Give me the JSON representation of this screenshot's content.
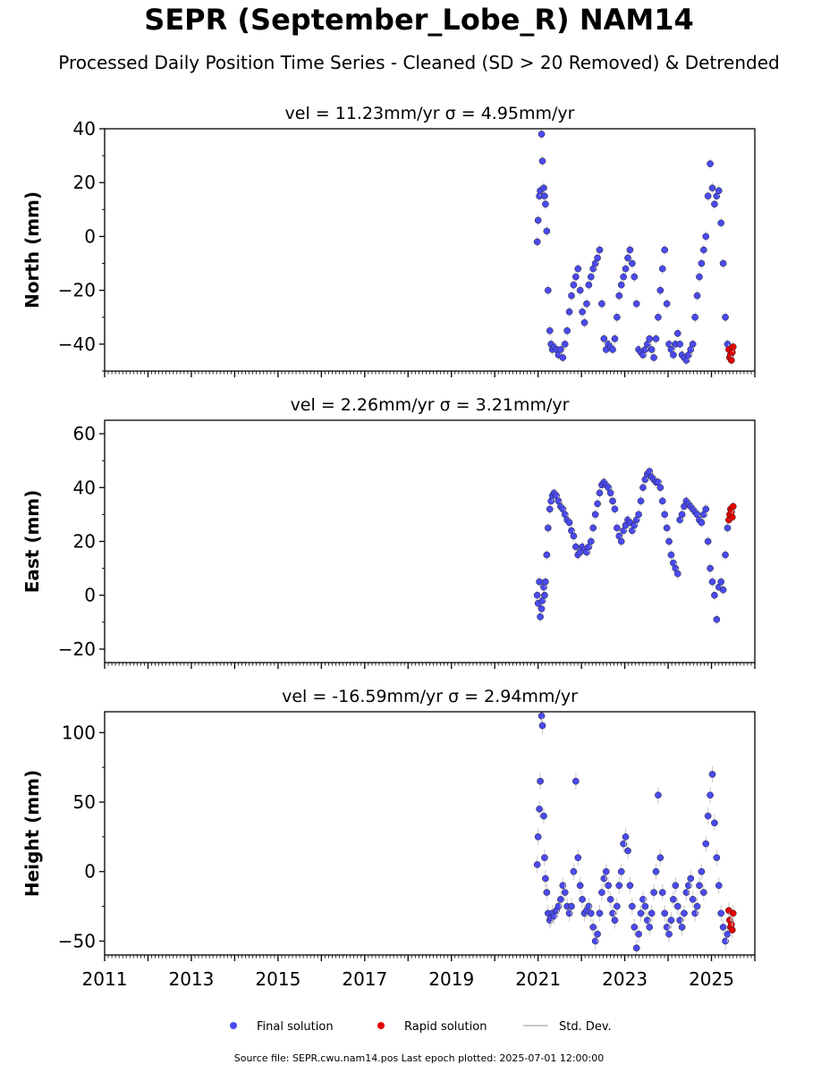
{
  "title": "SEPR (September_Lobe_R) NAM14",
  "subtitle": "Processed Daily Position Time Series - Cleaned (SD > 20 Removed) & Detrended",
  "footer": "Source file: SEPR.cwu.nam14.pos  Last epoch plotted: 2025-07-01 12:00:00",
  "colors": {
    "final": "#4a4af0",
    "rapid": "#e60000",
    "std": "#c8c8c8"
  },
  "legend": [
    {
      "key": "final",
      "label": "Final solution"
    },
    {
      "key": "rapid",
      "label": "Rapid solution"
    },
    {
      "key": "std",
      "label": "Std. Dev."
    }
  ],
  "chart_data": [
    {
      "type": "scatter",
      "panel": "north",
      "title": "vel = 11.23mm/yr   σ = 4.95mm/yr",
      "ylabel": "North (mm)",
      "xlim": [
        2011,
        2026
      ],
      "ylim": [
        -50,
        40
      ],
      "yticks": [
        -40,
        -20,
        0,
        20,
        40
      ],
      "xticks": [
        2011,
        2013,
        2015,
        2017,
        2019,
        2021,
        2023,
        2025
      ],
      "show_xticklabels": false,
      "series": [
        {
          "name": "Final solution",
          "x": [
            2020.98,
            2021.0,
            2021.03,
            2021.05,
            2021.08,
            2021.1,
            2021.13,
            2021.15,
            2021.17,
            2021.2,
            2021.23,
            2021.27,
            2021.3,
            2021.33,
            2021.37,
            2021.42,
            2021.47,
            2021.52,
            2021.57,
            2021.62,
            2021.67,
            2021.72,
            2021.77,
            2021.82,
            2021.87,
            2021.92,
            2021.97,
            2022.02,
            2022.07,
            2022.12,
            2022.17,
            2022.22,
            2022.27,
            2022.32,
            2022.37,
            2022.42,
            2022.47,
            2022.52,
            2022.57,
            2022.62,
            2022.67,
            2022.72,
            2022.77,
            2022.82,
            2022.87,
            2022.92,
            2022.97,
            2023.02,
            2023.07,
            2023.12,
            2023.17,
            2023.22,
            2023.27,
            2023.32,
            2023.37,
            2023.42,
            2023.47,
            2023.52,
            2023.57,
            2023.62,
            2023.67,
            2023.72,
            2023.77,
            2023.82,
            2023.87,
            2023.92,
            2023.97,
            2024.02,
            2024.07,
            2024.12,
            2024.17,
            2024.22,
            2024.27,
            2024.32,
            2024.37,
            2024.42,
            2024.47,
            2024.52,
            2024.57,
            2024.62,
            2024.67,
            2024.72,
            2024.77,
            2024.82,
            2024.87,
            2024.92,
            2024.97,
            2025.02,
            2025.07,
            2025.12,
            2025.17,
            2025.22,
            2025.27,
            2025.32,
            2025.37
          ],
          "y": [
            -2,
            6,
            15,
            17,
            38,
            28,
            18,
            15,
            12,
            2,
            -20,
            -35,
            -40,
            -42,
            -41,
            -42,
            -44,
            -42,
            -45,
            -40,
            -35,
            -28,
            -22,
            -18,
            -15,
            -12,
            -20,
            -28,
            -32,
            -25,
            -18,
            -15,
            -12,
            -10,
            -8,
            -5,
            -25,
            -38,
            -42,
            -40,
            -41,
            -42,
            -38,
            -30,
            -22,
            -18,
            -15,
            -12,
            -8,
            -5,
            -10,
            -15,
            -25,
            -42,
            -43,
            -44,
            -42,
            -40,
            -38,
            -42,
            -45,
            -38,
            -30,
            -20,
            -12,
            -5,
            -25,
            -40,
            -42,
            -44,
            -40,
            -36,
            -40,
            -44,
            -45,
            -46,
            -44,
            -42,
            -40,
            -30,
            -22,
            -15,
            -10,
            -5,
            0,
            15,
            27,
            18,
            12,
            15,
            17,
            5,
            -10,
            -30,
            -40
          ]
        },
        {
          "name": "Rapid solution",
          "x": [
            2025.4,
            2025.42,
            2025.44,
            2025.46,
            2025.48,
            2025.5
          ],
          "y": [
            -42,
            -45,
            -44,
            -46,
            -43,
            -41
          ]
        }
      ]
    },
    {
      "type": "scatter",
      "panel": "east",
      "title": "vel = 2.26mm/yr   σ = 3.21mm/yr",
      "ylabel": "East (mm)",
      "xlim": [
        2011,
        2026
      ],
      "ylim": [
        -25,
        65
      ],
      "yticks": [
        -20,
        0,
        20,
        40,
        60
      ],
      "xticks": [
        2011,
        2013,
        2015,
        2017,
        2019,
        2021,
        2023,
        2025
      ],
      "show_xticklabels": false,
      "series": [
        {
          "name": "Final solution",
          "x": [
            2020.98,
            2021.0,
            2021.03,
            2021.05,
            2021.08,
            2021.1,
            2021.13,
            2021.15,
            2021.17,
            2021.2,
            2021.23,
            2021.27,
            2021.3,
            2021.33,
            2021.37,
            2021.42,
            2021.47,
            2021.52,
            2021.57,
            2021.62,
            2021.67,
            2021.72,
            2021.77,
            2021.82,
            2021.87,
            2021.92,
            2021.97,
            2022.02,
            2022.07,
            2022.12,
            2022.17,
            2022.22,
            2022.27,
            2022.32,
            2022.37,
            2022.42,
            2022.47,
            2022.52,
            2022.57,
            2022.62,
            2022.67,
            2022.72,
            2022.77,
            2022.82,
            2022.87,
            2022.92,
            2022.97,
            2023.02,
            2023.07,
            2023.12,
            2023.17,
            2023.22,
            2023.27,
            2023.32,
            2023.37,
            2023.42,
            2023.47,
            2023.52,
            2023.57,
            2023.62,
            2023.67,
            2023.72,
            2023.77,
            2023.82,
            2023.87,
            2023.92,
            2023.97,
            2024.02,
            2024.07,
            2024.12,
            2024.17,
            2024.22,
            2024.27,
            2024.32,
            2024.37,
            2024.42,
            2024.47,
            2024.52,
            2024.57,
            2024.62,
            2024.67,
            2024.72,
            2024.77,
            2024.82,
            2024.87,
            2024.92,
            2024.97,
            2025.02,
            2025.07,
            2025.12,
            2025.17,
            2025.22,
            2025.27,
            2025.32,
            2025.37
          ],
          "y": [
            0,
            -3,
            5,
            -8,
            -5,
            -2,
            3,
            0,
            5,
            15,
            25,
            32,
            35,
            37,
            38,
            37,
            35,
            33,
            32,
            30,
            28,
            27,
            24,
            22,
            18,
            15,
            16,
            18,
            17,
            16,
            18,
            20,
            25,
            30,
            34,
            38,
            41,
            42,
            41,
            40,
            38,
            35,
            32,
            25,
            22,
            20,
            24,
            26,
            28,
            27,
            24,
            26,
            28,
            30,
            35,
            40,
            43,
            45,
            46,
            44,
            43,
            42,
            42,
            40,
            35,
            30,
            25,
            20,
            15,
            12,
            10,
            8,
            28,
            30,
            33,
            35,
            34,
            33,
            32,
            31,
            30,
            28,
            27,
            30,
            32,
            20,
            10,
            5,
            0,
            -9,
            3,
            5,
            2,
            15,
            25
          ]
        },
        {
          "name": "Rapid solution",
          "x": [
            2025.4,
            2025.42,
            2025.44,
            2025.46,
            2025.48,
            2025.5
          ],
          "y": [
            28,
            30,
            32,
            31,
            29,
            33
          ]
        }
      ]
    },
    {
      "type": "scatter",
      "panel": "height",
      "title": "vel = -16.59mm/yr   σ = 2.94mm/yr",
      "ylabel": "Height (mm)",
      "xlim": [
        2011,
        2026
      ],
      "ylim": [
        -60,
        115
      ],
      "yticks": [
        -50,
        0,
        50,
        100
      ],
      "xticks": [
        2011,
        2013,
        2015,
        2017,
        2019,
        2021,
        2023,
        2025
      ],
      "show_xticklabels": true,
      "series": [
        {
          "name": "Final solution",
          "x": [
            2020.98,
            2021.0,
            2021.03,
            2021.05,
            2021.08,
            2021.1,
            2021.13,
            2021.15,
            2021.17,
            2021.2,
            2021.23,
            2021.27,
            2021.3,
            2021.33,
            2021.37,
            2021.42,
            2021.47,
            2021.52,
            2021.57,
            2021.62,
            2021.67,
            2021.72,
            2021.77,
            2021.82,
            2021.87,
            2021.92,
            2021.97,
            2022.02,
            2022.07,
            2022.12,
            2022.17,
            2022.22,
            2022.27,
            2022.32,
            2022.37,
            2022.42,
            2022.47,
            2022.52,
            2022.57,
            2022.62,
            2022.67,
            2022.72,
            2022.77,
            2022.82,
            2022.87,
            2022.92,
            2022.97,
            2023.02,
            2023.07,
            2023.12,
            2023.17,
            2023.22,
            2023.27,
            2023.32,
            2023.37,
            2023.42,
            2023.47,
            2023.52,
            2023.57,
            2023.62,
            2023.67,
            2023.72,
            2023.77,
            2023.82,
            2023.87,
            2023.92,
            2023.97,
            2024.02,
            2024.07,
            2024.12,
            2024.17,
            2024.22,
            2024.27,
            2024.32,
            2024.37,
            2024.42,
            2024.47,
            2024.52,
            2024.57,
            2024.62,
            2024.67,
            2024.72,
            2024.77,
            2024.82,
            2024.87,
            2024.92,
            2024.97,
            2025.02,
            2025.07,
            2025.12,
            2025.17,
            2025.22,
            2025.27,
            2025.32,
            2025.37
          ],
          "y": [
            5,
            25,
            45,
            65,
            112,
            105,
            40,
            10,
            -5,
            -15,
            -30,
            -35,
            -33,
            -30,
            -32,
            -28,
            -25,
            -20,
            -10,
            -15,
            -25,
            -30,
            -25,
            0,
            65,
            10,
            -10,
            -20,
            -30,
            -28,
            -25,
            -30,
            -40,
            -50,
            -45,
            -30,
            -15,
            -5,
            0,
            -10,
            -20,
            -30,
            -35,
            -25,
            -10,
            0,
            20,
            25,
            15,
            -10,
            -25,
            -40,
            -55,
            -45,
            -30,
            -20,
            -25,
            -35,
            -40,
            -30,
            -15,
            0,
            55,
            10,
            -15,
            -30,
            -40,
            -45,
            -35,
            -20,
            -10,
            -25,
            -35,
            -40,
            -30,
            -15,
            -10,
            -5,
            -20,
            -30,
            -25,
            -10,
            0,
            -15,
            20,
            40,
            55,
            70,
            35,
            10,
            -10,
            -30,
            -40,
            -50,
            -45
          ]
        },
        {
          "name": "Rapid solution",
          "x": [
            2025.4,
            2025.42,
            2025.44,
            2025.46,
            2025.48,
            2025.5
          ],
          "y": [
            -28,
            -35,
            -40,
            -38,
            -42,
            -30
          ]
        }
      ]
    }
  ]
}
